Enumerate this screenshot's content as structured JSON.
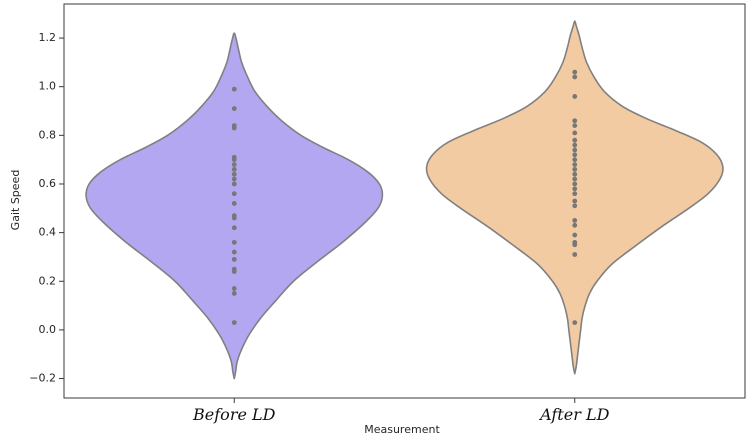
{
  "chart_data": {
    "type": "violin",
    "title": "",
    "xlabel": "Measurement",
    "ylabel": "Gait Speed",
    "ylim": [
      -0.28,
      1.34
    ],
    "yticks": [
      -0.2,
      0.0,
      0.2,
      0.4,
      0.6,
      0.8,
      1.0,
      1.2
    ],
    "ytick_labels": [
      "−0.2",
      "0.0",
      "0.2",
      "0.4",
      "0.6",
      "0.8",
      "1.0",
      "1.2"
    ],
    "categories": [
      "Before LD",
      "After LD"
    ],
    "grid": false,
    "series": [
      {
        "category": "Before LD",
        "color": "#b2a7f0",
        "points": [
          0.99,
          0.91,
          0.84,
          0.83,
          0.71,
          0.7,
          0.68,
          0.66,
          0.64,
          0.62,
          0.6,
          0.56,
          0.52,
          0.47,
          0.46,
          0.42,
          0.36,
          0.32,
          0.29,
          0.25,
          0.24,
          0.17,
          0.15,
          0.03
        ],
        "density_profile": {
          "y": [
            -0.2,
            -0.17,
            -0.13,
            -0.08,
            -0.02,
            0.05,
            0.12,
            0.2,
            0.28,
            0.36,
            0.44,
            0.5,
            0.55,
            0.6,
            0.65,
            0.7,
            0.75,
            0.8,
            0.86,
            0.92,
            0.98,
            1.04,
            1.1,
            1.15,
            1.19,
            1.22
          ],
          "halfwidth": [
            0.0,
            0.01,
            0.02,
            0.05,
            0.1,
            0.18,
            0.28,
            0.4,
            0.56,
            0.73,
            0.88,
            0.97,
            1.0,
            0.98,
            0.9,
            0.77,
            0.6,
            0.45,
            0.32,
            0.22,
            0.14,
            0.09,
            0.05,
            0.03,
            0.015,
            0.0
          ]
        }
      },
      {
        "category": "After LD",
        "color": "#f3cba3",
        "points": [
          1.06,
          1.04,
          0.96,
          0.86,
          0.84,
          0.81,
          0.78,
          0.76,
          0.74,
          0.72,
          0.7,
          0.68,
          0.66,
          0.64,
          0.62,
          0.6,
          0.58,
          0.56,
          0.53,
          0.51,
          0.45,
          0.43,
          0.39,
          0.36,
          0.35,
          0.31,
          0.03
        ],
        "density_profile": {
          "y": [
            -0.18,
            -0.15,
            -0.1,
            -0.05,
            0.0,
            0.05,
            0.1,
            0.15,
            0.2,
            0.27,
            0.35,
            0.43,
            0.5,
            0.56,
            0.62,
            0.67,
            0.72,
            0.77,
            0.82,
            0.87,
            0.92,
            0.98,
            1.04,
            1.1,
            1.16,
            1.21,
            1.25,
            1.27
          ],
          "halfwidth": [
            0.0,
            0.01,
            0.02,
            0.03,
            0.04,
            0.05,
            0.07,
            0.1,
            0.15,
            0.25,
            0.42,
            0.6,
            0.77,
            0.9,
            0.98,
            1.0,
            0.96,
            0.86,
            0.68,
            0.48,
            0.32,
            0.2,
            0.13,
            0.08,
            0.05,
            0.03,
            0.01,
            0.0
          ]
        }
      }
    ],
    "point_color": "#777777",
    "outline_color": "#808080",
    "max_halfwidth_fraction": 0.435
  }
}
